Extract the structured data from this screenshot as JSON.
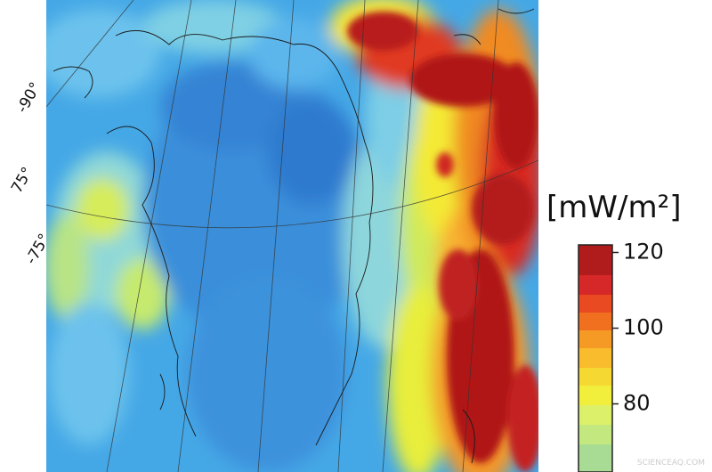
{
  "map": {
    "graticule_labels": [
      "-90°",
      "75°",
      "-75°"
    ],
    "colorbar": {
      "unit": "[mW/m²]",
      "range": [
        62,
        122
      ],
      "ticks": [
        120,
        100,
        80
      ]
    },
    "watermark": "SCIENCEAQ.COM"
  }
}
